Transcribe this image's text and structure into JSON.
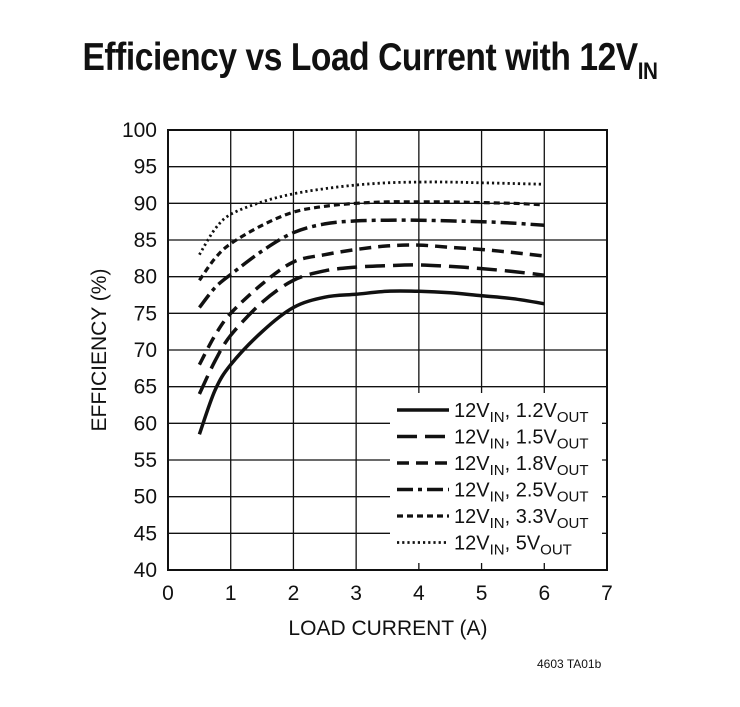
{
  "title": {
    "main": "Efficiency vs Load Current with 12V",
    "sub": "IN"
  },
  "figure_id": "4603 TA01b",
  "chart_data": {
    "type": "line",
    "title": "Efficiency vs Load Current with 12VIN",
    "xlabel": "LOAD CURRENT (A)",
    "ylabel": "EFFICIENCY (%)",
    "xlim": [
      0,
      7
    ],
    "ylim": [
      40,
      100
    ],
    "xticks": [
      0,
      1,
      2,
      3,
      4,
      5,
      6,
      7
    ],
    "yticks": [
      40,
      45,
      50,
      55,
      60,
      65,
      70,
      75,
      80,
      85,
      90,
      95,
      100
    ],
    "grid": true,
    "legend_position": "bottom-right",
    "series": [
      {
        "name": "12VIN, 1.2VOUT",
        "legend": {
          "a": "12V",
          "b": "IN",
          "c": ", 1.2V",
          "d": "OUT"
        },
        "dash": "solid",
        "x": [
          0.5,
          0.75,
          1.0,
          1.5,
          2.0,
          2.5,
          3.0,
          3.5,
          4.0,
          4.5,
          5.0,
          5.5,
          6.0
        ],
        "y": [
          58.5,
          64.5,
          68.0,
          72.5,
          75.8,
          77.2,
          77.6,
          78.0,
          78.0,
          77.8,
          77.4,
          77.0,
          76.3
        ]
      },
      {
        "name": "12VIN, 1.5VOUT",
        "legend": {
          "a": "12V",
          "b": "IN",
          "c": ", 1.5V",
          "d": "OUT"
        },
        "dash": "long",
        "x": [
          0.5,
          0.75,
          1.0,
          1.5,
          2.0,
          2.5,
          3.0,
          3.5,
          4.0,
          4.5,
          5.0,
          5.5,
          6.0
        ],
        "y": [
          64.0,
          68.5,
          72.0,
          76.5,
          79.5,
          80.8,
          81.3,
          81.5,
          81.6,
          81.4,
          81.1,
          80.7,
          80.2
        ]
      },
      {
        "name": "12VIN, 1.8VOUT",
        "legend": {
          "a": "12V",
          "b": "IN",
          "c": ", 1.8V",
          "d": "OUT"
        },
        "dash": "medium",
        "x": [
          0.5,
          0.75,
          1.0,
          1.5,
          2.0,
          2.5,
          3.0,
          3.5,
          4.0,
          4.5,
          5.0,
          5.5,
          6.0
        ],
        "y": [
          68.0,
          72.0,
          75.0,
          79.0,
          82.0,
          83.0,
          83.7,
          84.2,
          84.3,
          84.0,
          83.7,
          83.3,
          82.8
        ]
      },
      {
        "name": "12VIN, 2.5VOUT",
        "legend": {
          "a": "12V",
          "b": "IN",
          "c": ", 2.5V",
          "d": "OUT"
        },
        "dash": "dashdot",
        "x": [
          0.5,
          0.75,
          1.0,
          1.5,
          2.0,
          2.5,
          3.0,
          3.5,
          4.0,
          4.5,
          5.0,
          5.5,
          6.0
        ],
        "y": [
          75.8,
          78.5,
          80.3,
          83.5,
          86.0,
          87.2,
          87.6,
          87.7,
          87.7,
          87.6,
          87.5,
          87.3,
          87.0
        ]
      },
      {
        "name": "12VIN, 3.3VOUT",
        "legend": {
          "a": "12V",
          "b": "IN",
          "c": ", 3.3V",
          "d": "OUT"
        },
        "dash": "short",
        "x": [
          0.5,
          0.75,
          1.0,
          1.5,
          2.0,
          2.5,
          3.0,
          3.5,
          4.0,
          4.5,
          5.0,
          5.5,
          6.0
        ],
        "y": [
          79.5,
          82.5,
          84.5,
          87.0,
          88.8,
          89.6,
          90.0,
          90.2,
          90.2,
          90.2,
          90.1,
          90.0,
          89.8
        ]
      },
      {
        "name": "12VIN, 5VOUT",
        "legend": {
          "a": "12V",
          "b": "IN",
          "c": ", 5V",
          "d": "OUT"
        },
        "dash": "dotted",
        "x": [
          0.5,
          0.75,
          1.0,
          1.5,
          2.0,
          2.5,
          3.0,
          3.5,
          4.0,
          4.5,
          5.0,
          5.5,
          6.0
        ],
        "y": [
          83.0,
          86.5,
          88.5,
          90.2,
          91.3,
          92.0,
          92.5,
          92.8,
          92.9,
          92.9,
          92.8,
          92.7,
          92.6
        ]
      }
    ]
  }
}
